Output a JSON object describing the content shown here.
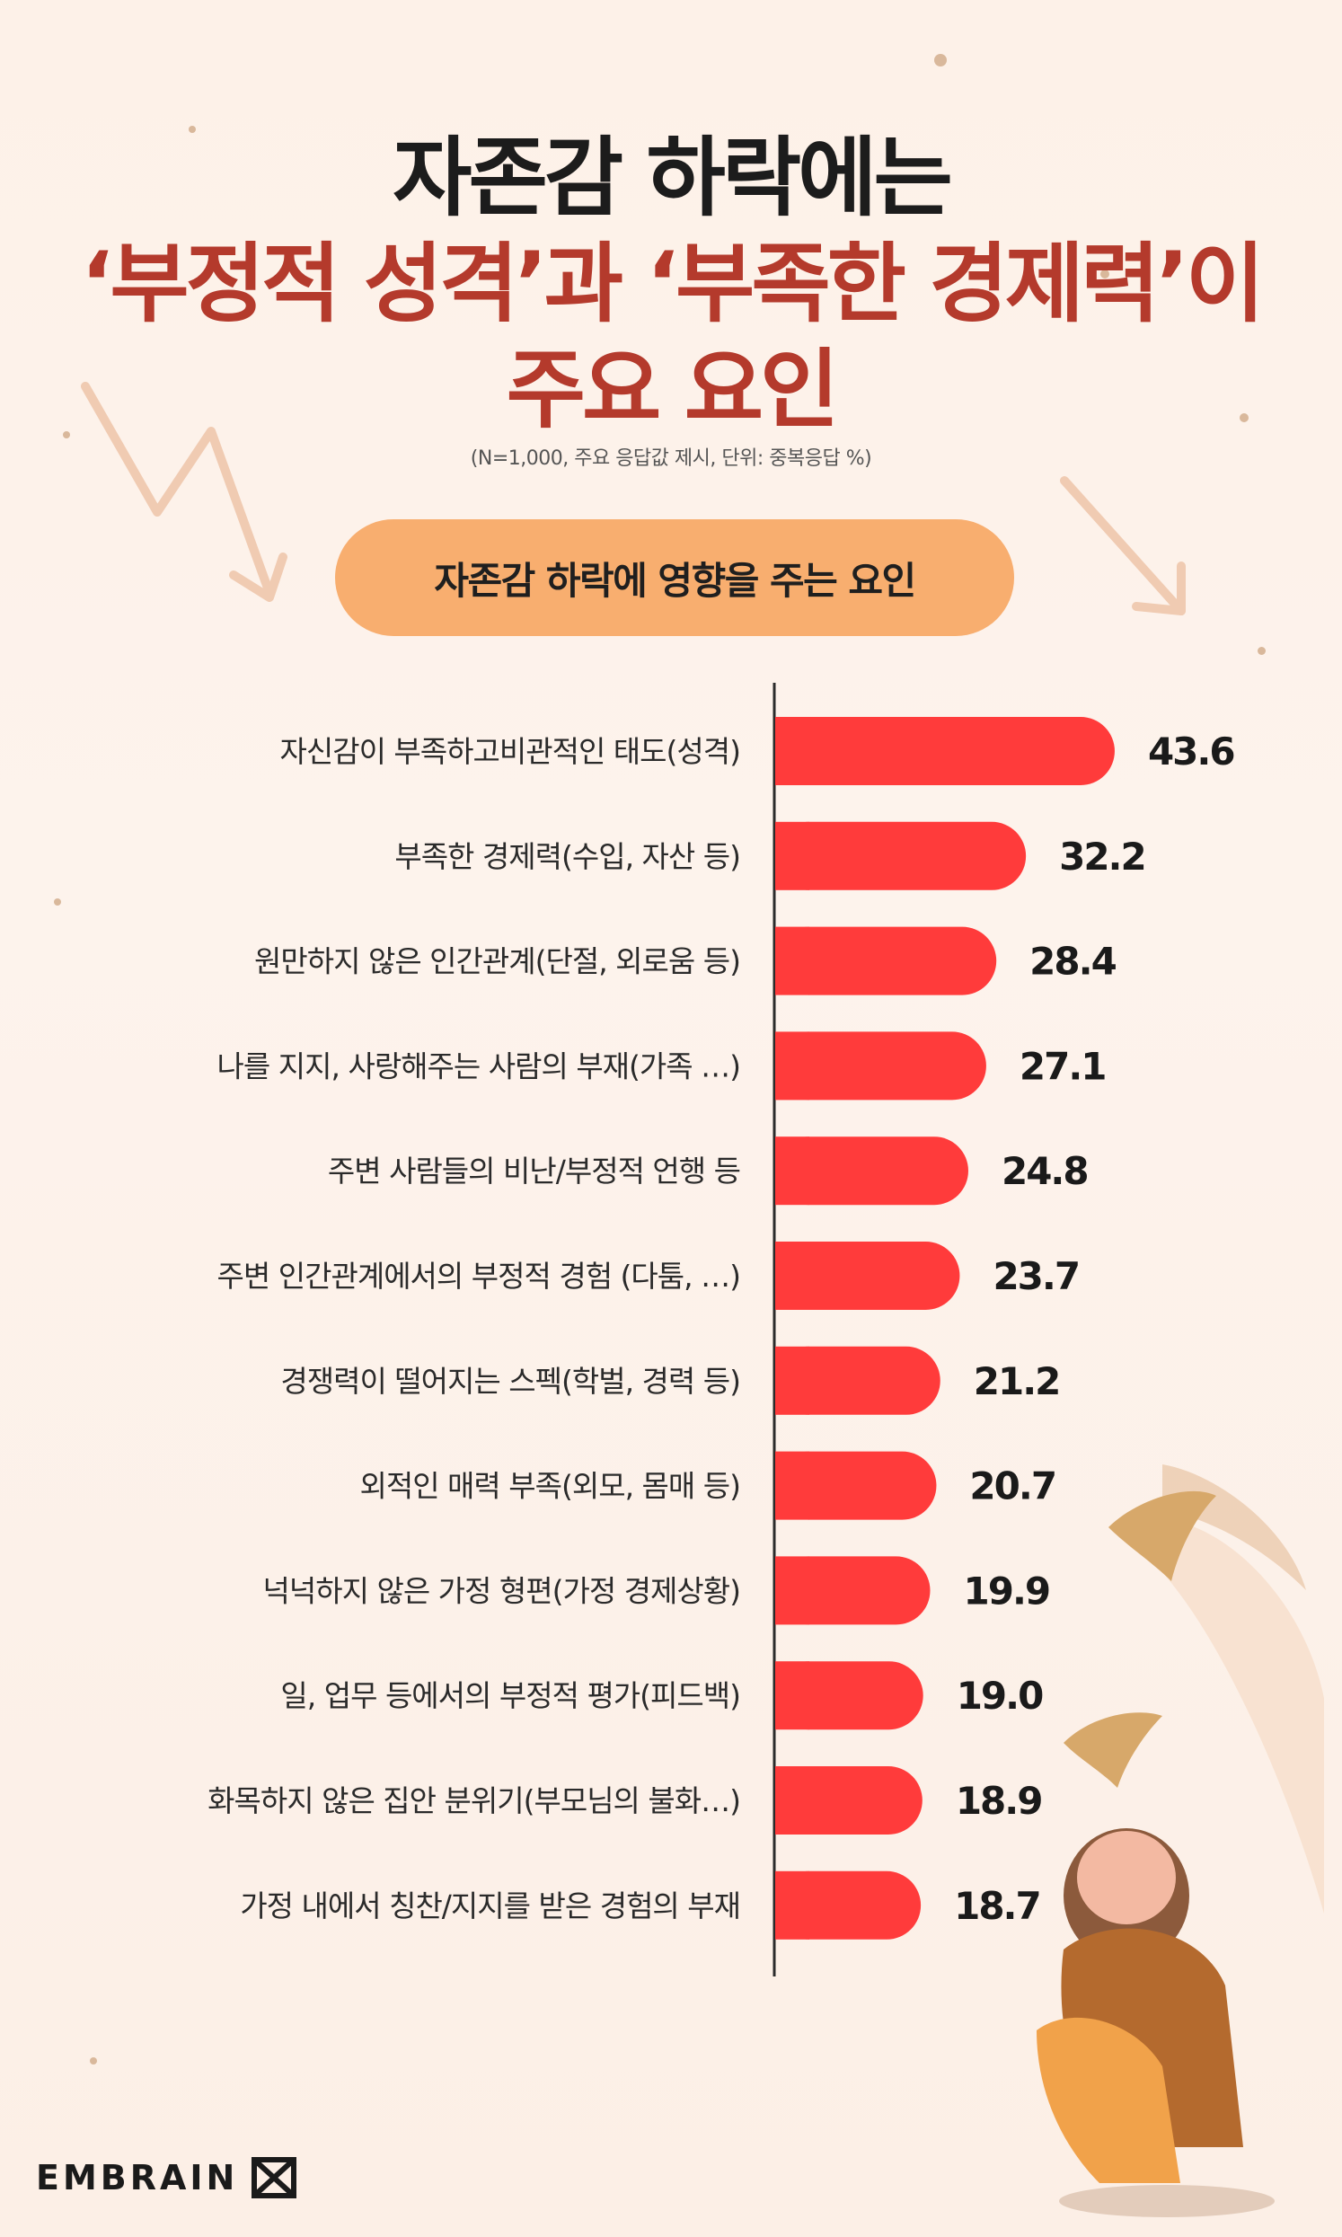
{
  "title": {
    "line1": "자존감 하락에는",
    "line2": "‘부정적 성격’과 ‘부족한 경제력’이",
    "line3": "주요 요인"
  },
  "note": "(N=1,000, 주요 응답값 제시, 단위: 중복응답 %)",
  "pill_label": "자존감 하락에 영향을 주는 요인",
  "brand": "EMBRAIN",
  "colors": {
    "bar": "#ff3b3b",
    "title_accent": "#b43a2c",
    "pill": "#f8ae6f"
  },
  "chart_data": {
    "type": "bar",
    "orientation": "horizontal",
    "categories": [
      "자신감이 부족하고비관적인 태도(성격)",
      "부족한 경제력(수입, 자산 등)",
      "원만하지 않은 인간관계(단절, 외로움 등)",
      "나를 지지, 사랑해주는 사람의 부재(가족 …)",
      "주변 사람들의 비난/부정적 언행 등",
      "주변 인간관계에서의 부정적 경험 (다툼, …)",
      "경쟁력이 떨어지는 스펙(학벌, 경력 등)",
      "외적인 매력 부족(외모, 몸매 등)",
      "넉넉하지 않은 가정 형편(가정 경제상황)",
      "일, 업무 등에서의 부정적 평가(피드백)",
      "화목하지 않은 집안 분위기(부모님의 불화…)",
      "가정 내에서 칭찬/지지를 받은 경험의 부재"
    ],
    "values": [
      43.6,
      32.2,
      28.4,
      27.1,
      24.8,
      23.7,
      21.2,
      20.7,
      19.9,
      19.0,
      18.9,
      18.7
    ],
    "value_labels": [
      "43.6",
      "32.2",
      "28.4",
      "27.1",
      "24.8",
      "23.7",
      "21.2",
      "20.7",
      "19.9",
      "19.0",
      "18.9",
      "18.7"
    ],
    "xlim": [
      0,
      45
    ],
    "grid": false
  }
}
